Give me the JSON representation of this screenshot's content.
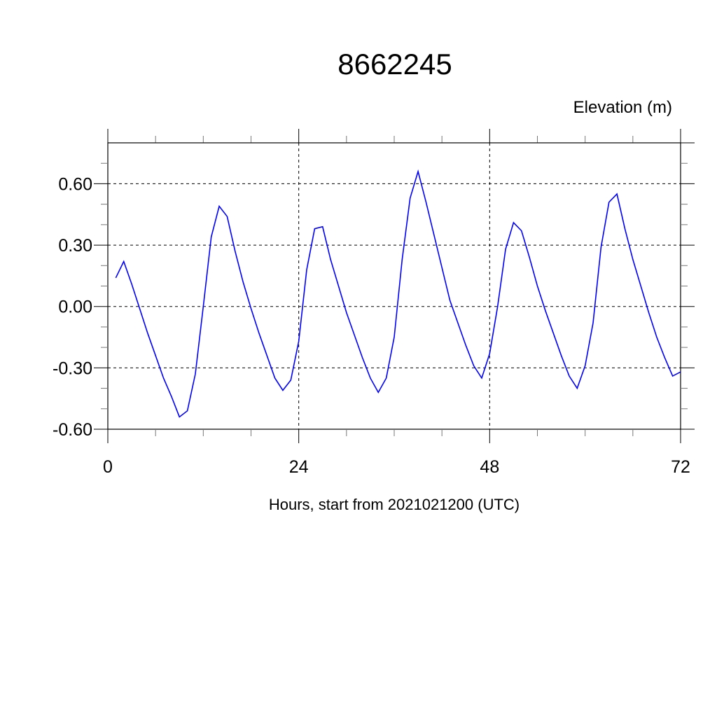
{
  "chart_data": {
    "type": "line",
    "title": "8662245",
    "ylabel": "Elevation (m)",
    "xlabel": "Hours, start from 2021021200 (UTC)",
    "xlim": [
      0,
      72
    ],
    "ylim": [
      -0.6,
      0.8
    ],
    "xticks": [
      0,
      24,
      48,
      72
    ],
    "xtick_labels": [
      "0",
      "24",
      "48",
      "72"
    ],
    "yticks": [
      -0.6,
      -0.3,
      0.0,
      0.3,
      0.6
    ],
    "ytick_labels": [
      "-0.60",
      "-0.30",
      "0.00",
      "0.30",
      "0.60"
    ],
    "grid": "dashed at major ticks",
    "line_color": "#0000ff",
    "series": [
      {
        "x": [
          1,
          2,
          3,
          4,
          5,
          6,
          7,
          8,
          9,
          10,
          11,
          12,
          13,
          14,
          15,
          16,
          17,
          18,
          19,
          20,
          21,
          22,
          23,
          24,
          25,
          26,
          27,
          28,
          29,
          30,
          31,
          32,
          33,
          34,
          35,
          36,
          37,
          38,
          39,
          40,
          41,
          42,
          43,
          44,
          45,
          46,
          47,
          48,
          49,
          50,
          51,
          52,
          53,
          54,
          55,
          56,
          57,
          58,
          59,
          60,
          61,
          62,
          63,
          64,
          65,
          66,
          67,
          68,
          69,
          70,
          71,
          72
        ],
        "values": [
          0.14,
          0.22,
          0.11,
          -0.01,
          -0.13,
          -0.24,
          -0.35,
          -0.44,
          -0.54,
          -0.51,
          -0.33,
          0.0,
          0.34,
          0.49,
          0.44,
          0.27,
          0.12,
          -0.01,
          -0.13,
          -0.24,
          -0.35,
          -0.41,
          -0.36,
          -0.17,
          0.18,
          0.38,
          0.39,
          0.23,
          0.1,
          -0.03,
          -0.14,
          -0.25,
          -0.35,
          -0.42,
          -0.35,
          -0.15,
          0.23,
          0.53,
          0.66,
          0.51,
          0.35,
          0.19,
          0.03,
          -0.08,
          -0.19,
          -0.29,
          -0.35,
          -0.23,
          0.0,
          0.28,
          0.41,
          0.37,
          0.24,
          0.1,
          -0.02,
          -0.13,
          -0.24,
          -0.34,
          -0.4,
          -0.29,
          -0.08,
          0.29,
          0.51,
          0.55,
          0.38,
          0.23,
          0.1,
          -0.03,
          -0.15,
          -0.25,
          -0.34,
          -0.32
        ]
      }
    ]
  }
}
